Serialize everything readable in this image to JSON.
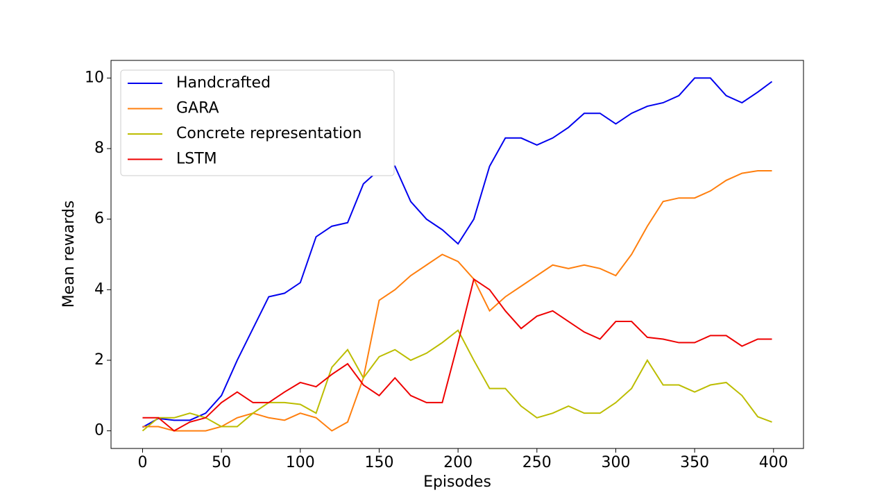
{
  "chart_data": {
    "type": "line",
    "x_label": "Episodes",
    "y_label": "Mean rewards",
    "x": [
      0,
      10,
      20,
      30,
      40,
      50,
      60,
      70,
      80,
      90,
      100,
      110,
      120,
      130,
      140,
      150,
      160,
      170,
      180,
      190,
      200,
      210,
      220,
      230,
      240,
      250,
      260,
      270,
      280,
      290,
      300,
      310,
      320,
      330,
      340,
      350,
      360,
      370,
      380,
      390,
      399
    ],
    "series": [
      {
        "name": "Handcrafted",
        "color": "#0000ee",
        "values": [
          0.1,
          0.35,
          0.3,
          0.3,
          0.5,
          1.0,
          2.0,
          2.9,
          3.8,
          3.9,
          4.2,
          5.5,
          5.8,
          5.9,
          7.0,
          7.4,
          7.5,
          6.5,
          6.0,
          5.7,
          5.3,
          6.0,
          7.5,
          8.3,
          8.3,
          8.1,
          8.3,
          8.6,
          9.0,
          9.0,
          8.7,
          9.0,
          9.2,
          9.3,
          9.5,
          10.0,
          10.0,
          9.5,
          9.3,
          9.6,
          9.9
        ]
      },
      {
        "name": "GARA",
        "color": "#ff7f0e",
        "values": [
          0.12,
          0.12,
          0.0,
          0.0,
          0.0,
          0.12,
          0.37,
          0.5,
          0.37,
          0.3,
          0.5,
          0.37,
          0.0,
          0.25,
          1.5,
          3.7,
          4.0,
          4.4,
          4.7,
          5.0,
          4.8,
          4.3,
          3.4,
          3.8,
          4.1,
          4.4,
          4.7,
          4.6,
          4.7,
          4.6,
          4.4,
          5.0,
          5.8,
          6.5,
          6.6,
          6.6,
          6.8,
          7.1,
          7.3,
          7.37,
          7.37
        ]
      },
      {
        "name": "Concrete representation",
        "color": "#bcbd00",
        "values": [
          0.0,
          0.37,
          0.37,
          0.5,
          0.37,
          0.12,
          0.12,
          0.5,
          0.8,
          0.8,
          0.75,
          0.5,
          1.8,
          2.3,
          1.5,
          2.1,
          2.3,
          2.0,
          2.2,
          2.5,
          2.85,
          2.0,
          1.2,
          1.2,
          0.7,
          0.37,
          0.5,
          0.7,
          0.5,
          0.5,
          0.8,
          1.2,
          2.0,
          1.3,
          1.3,
          1.1,
          1.3,
          1.37,
          1.0,
          0.4,
          0.25
        ]
      },
      {
        "name": "LSTM",
        "color": "#ee0000",
        "values": [
          0.37,
          0.37,
          0.0,
          0.25,
          0.37,
          0.8,
          1.1,
          0.8,
          0.8,
          1.1,
          1.37,
          1.25,
          1.6,
          1.9,
          1.3,
          1.0,
          1.5,
          1.0,
          0.8,
          0.8,
          2.5,
          4.3,
          4.0,
          3.4,
          2.9,
          3.25,
          3.4,
          3.1,
          2.8,
          2.6,
          3.1,
          3.1,
          2.65,
          2.6,
          2.5,
          2.5,
          2.7,
          2.7,
          2.4,
          2.6,
          2.6
        ]
      }
    ],
    "xlim": [
      -20,
      419
    ],
    "ylim": [
      -0.5,
      10.5
    ],
    "xticks": [
      0,
      50,
      100,
      150,
      200,
      250,
      300,
      350,
      400
    ],
    "yticks": [
      0,
      2,
      4,
      6,
      8,
      10
    ],
    "legend": "upper left"
  }
}
